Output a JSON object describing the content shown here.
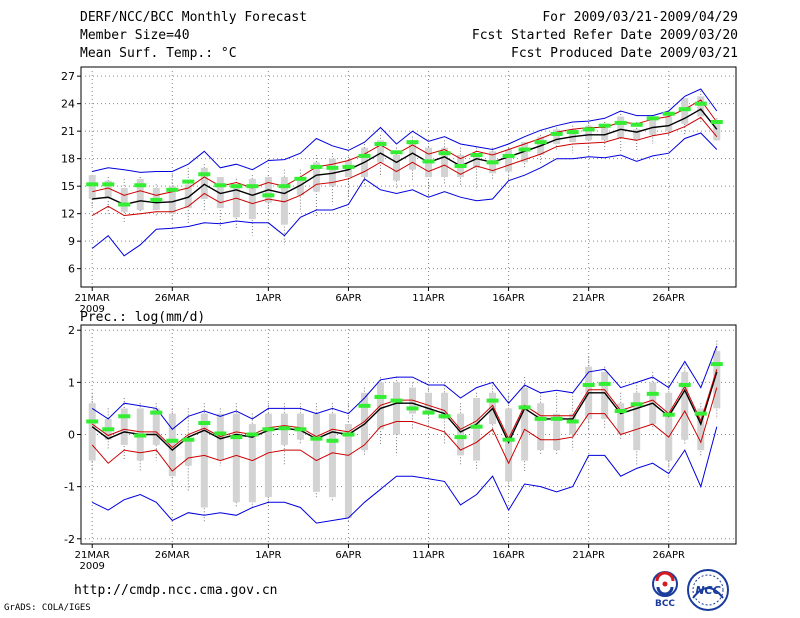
{
  "header": {
    "title": "DERF/NCC/BCC Monthly Forecast",
    "member_size": "Member Size=40",
    "variable": "Mean Surf. Temp.: °C",
    "period": "For 2009/03/21-2009/04/29",
    "fcst_started": "Fcst Started Refer Date 2009/03/20",
    "fcst_produced": "Fcst Produced Date 2009/03/21"
  },
  "footer": {
    "url": "http://cmdp.ncc.cma.gov.cn",
    "credit": "GrADS: COLA/IGES",
    "logo_bcc": "BCC",
    "logo_ncc": "NCC"
  },
  "colors": {
    "mean_line": "#000000",
    "inner_band": "#cc0000",
    "outer_band": "#0000dd",
    "box": "#d3d3d3",
    "observation_marker": "#33ee33",
    "whisker": "#777777"
  },
  "chart_data": [
    {
      "type": "line",
      "title": "Mean Surf. Temp.: °C",
      "ylim": [
        4,
        28
      ],
      "yticks": [
        6,
        9,
        12,
        15,
        18,
        21,
        24,
        27
      ],
      "xticks": [
        {
          "day": 1,
          "label": "21MAR",
          "sub": "2009"
        },
        {
          "day": 6,
          "label": "26MAR"
        },
        {
          "day": 12,
          "label": "1APR"
        },
        {
          "day": 17,
          "label": "6APR"
        },
        {
          "day": 22,
          "label": "11APR"
        },
        {
          "day": 27,
          "label": "16APR"
        },
        {
          "day": 32,
          "label": "21APR"
        },
        {
          "day": 37,
          "label": "26APR"
        }
      ],
      "x": [
        1,
        2,
        3,
        4,
        5,
        6,
        7,
        8,
        9,
        10,
        11,
        12,
        13,
        14,
        15,
        16,
        17,
        18,
        19,
        20,
        21,
        22,
        23,
        24,
        25,
        26,
        27,
        28,
        29,
        30,
        31,
        32,
        33,
        34,
        35,
        36,
        37,
        38,
        39,
        40
      ],
      "series": [
        {
          "name": "ensemble_mean",
          "values": [
            13.6,
            13.8,
            13.0,
            13.4,
            13.2,
            13.3,
            13.8,
            15.2,
            14.2,
            14.6,
            14.0,
            14.6,
            14.2,
            15.1,
            16.2,
            16.4,
            16.8,
            17.6,
            18.6,
            17.6,
            18.6,
            17.6,
            18.2,
            17.2,
            18.0,
            17.6,
            18.2,
            18.8,
            19.4,
            20.1,
            20.4,
            20.6,
            20.6,
            21.2,
            20.9,
            21.4,
            21.6,
            22.4,
            23.4,
            21.2
          ]
        },
        {
          "name": "upper_inner",
          "values": [
            14.4,
            14.8,
            14.0,
            14.5,
            14.0,
            14.4,
            14.8,
            16.0,
            15.0,
            15.4,
            14.8,
            15.4,
            15.0,
            16.0,
            17.1,
            17.4,
            17.8,
            18.5,
            19.5,
            18.5,
            19.5,
            18.5,
            19.0,
            18.0,
            18.8,
            18.4,
            19.0,
            19.6,
            20.2,
            20.9,
            21.2,
            21.4,
            21.4,
            22.0,
            21.8,
            22.3,
            22.6,
            23.4,
            24.4,
            22.0
          ]
        },
        {
          "name": "lower_inner",
          "values": [
            11.8,
            12.8,
            11.8,
            12.0,
            12.2,
            12.2,
            12.8,
            14.2,
            13.2,
            13.7,
            13.1,
            13.6,
            13.3,
            14.0,
            15.2,
            15.4,
            15.8,
            16.6,
            17.6,
            16.6,
            17.6,
            16.6,
            17.3,
            16.3,
            17.2,
            16.7,
            17.3,
            17.9,
            18.5,
            19.3,
            19.6,
            19.7,
            19.8,
            20.3,
            20.0,
            20.5,
            20.8,
            21.5,
            22.5,
            20.4
          ]
        },
        {
          "name": "upper_outer",
          "values": [
            16.6,
            17.0,
            16.8,
            16.5,
            16.6,
            16.6,
            17.4,
            18.8,
            17.0,
            17.4,
            16.8,
            17.8,
            17.9,
            18.6,
            20.2,
            19.4,
            18.9,
            19.8,
            21.4,
            19.6,
            21.0,
            19.9,
            20.4,
            19.6,
            19.3,
            19.0,
            19.6,
            20.4,
            21.1,
            21.6,
            22.0,
            22.1,
            22.4,
            23.2,
            22.7,
            22.7,
            23.2,
            24.8,
            25.6,
            23.2
          ]
        },
        {
          "name": "lower_outer",
          "values": [
            8.2,
            9.6,
            7.4,
            8.6,
            10.3,
            10.4,
            10.6,
            11.0,
            10.9,
            11.2,
            11.0,
            11.0,
            9.6,
            11.6,
            12.4,
            12.4,
            13.0,
            15.8,
            14.6,
            14.2,
            14.6,
            13.8,
            14.4,
            13.8,
            13.4,
            13.6,
            15.6,
            16.2,
            17.0,
            18.0,
            18.0,
            18.2,
            18.1,
            18.4,
            17.7,
            18.3,
            18.6,
            20.2,
            20.8,
            19.0
          ]
        },
        {
          "name": "observation",
          "values": [
            15.2,
            15.2,
            13.0,
            15.1,
            13.5,
            14.6,
            15.5,
            16.3,
            15.1,
            15.0,
            15.0,
            14.0,
            15.0,
            15.8,
            17.1,
            17.0,
            17.1,
            18.3,
            19.6,
            18.7,
            19.8,
            17.7,
            18.6,
            17.2,
            18.4,
            17.6,
            18.3,
            19.0,
            19.8,
            20.7,
            20.9,
            21.2,
            21.6,
            21.9,
            21.7,
            22.4,
            22.9,
            23.4,
            24.0,
            22.0
          ]
        }
      ],
      "box_low": [
        13.6,
        13.6,
        12.2,
        12.4,
        12.4,
        12.0,
        12.6,
        13.6,
        12.6,
        11.6,
        11.4,
        13.2,
        10.8,
        14.0,
        14.4,
        15.0,
        16.0,
        16.0,
        17.6,
        15.6,
        16.8,
        16.0,
        16.0,
        16.0,
        17.0,
        16.4,
        16.6,
        17.6,
        18.4,
        19.6,
        19.8,
        20.0,
        20.0,
        20.2,
        20.0,
        20.6,
        21.0,
        21.8,
        22.6,
        20.0
      ],
      "box_high": [
        16.2,
        15.6,
        14.8,
        15.8,
        14.8,
        15.0,
        15.2,
        17.0,
        16.0,
        15.2,
        15.8,
        16.0,
        16.0,
        16.0,
        17.6,
        18.0,
        17.8,
        19.2,
        20.0,
        18.4,
        19.6,
        19.2,
        19.2,
        18.4,
        18.4,
        18.8,
        19.0,
        19.8,
        20.4,
        21.2,
        21.2,
        21.6,
        21.8,
        22.6,
        21.2,
        22.4,
        22.6,
        24.6,
        24.8,
        22.0
      ],
      "wh_low": [
        12.8,
        12.0,
        11.0,
        12.0,
        11.6,
        11.2,
        10.8,
        12.2,
        10.4,
        10.2,
        9.6,
        12.0,
        8.6,
        12.2,
        11.6,
        13.0,
        13.8,
        15.0,
        16.0,
        14.8,
        15.6,
        14.0,
        15.2,
        15.0,
        14.6,
        15.8,
        15.8,
        17.0,
        17.4,
        19.0,
        18.6,
        18.8,
        19.0,
        18.8,
        18.8,
        19.6,
        20.4,
        20.6,
        22.0,
        20.0
      ],
      "wh_high": [
        16.2,
        16.0,
        15.8,
        16.0,
        15.2,
        16.4,
        17.0,
        17.4,
        16.0,
        15.8,
        16.2,
        16.2,
        16.8,
        16.8,
        18.4,
        18.6,
        18.2,
        19.6,
        20.6,
        19.2,
        20.4,
        19.4,
        20.0,
        19.2,
        19.2,
        19.2,
        19.2,
        19.8,
        20.6,
        21.4,
        21.6,
        22.0,
        22.0,
        23.2,
        22.0,
        22.6,
        23.0,
        24.4,
        25.4,
        22.4
      ]
    },
    {
      "type": "line",
      "title": "Prec.: log(mm/d)",
      "ylim": [
        -2.1,
        2.1
      ],
      "yticks": [
        -2,
        -1,
        0,
        1,
        2
      ],
      "xticks": [
        {
          "day": 1,
          "label": "21MAR",
          "sub": "2009"
        },
        {
          "day": 6,
          "label": "26MAR"
        },
        {
          "day": 12,
          "label": "1APR"
        },
        {
          "day": 17,
          "label": "6APR"
        },
        {
          "day": 22,
          "label": "11APR"
        },
        {
          "day": 27,
          "label": "16APR"
        },
        {
          "day": 32,
          "label": "21APR"
        },
        {
          "day": 37,
          "label": "26APR"
        }
      ],
      "x": [
        1,
        2,
        3,
        4,
        5,
        6,
        7,
        8,
        9,
        10,
        11,
        12,
        13,
        14,
        15,
        16,
        17,
        18,
        19,
        20,
        21,
        22,
        23,
        24,
        25,
        26,
        27,
        28,
        29,
        30,
        31,
        32,
        33,
        34,
        35,
        36,
        37,
        38,
        39,
        40
      ],
      "series": [
        {
          "name": "ensemble_mean",
          "values": [
            0.15,
            -0.08,
            0.05,
            0.0,
            0.0,
            -0.3,
            -0.05,
            0.08,
            -0.08,
            0.0,
            -0.05,
            0.08,
            0.12,
            0.08,
            -0.08,
            0.05,
            0.0,
            0.2,
            0.5,
            0.6,
            0.6,
            0.5,
            0.4,
            0.05,
            0.2,
            0.5,
            -0.15,
            0.5,
            0.3,
            0.3,
            0.3,
            0.8,
            0.8,
            0.4,
            0.5,
            0.6,
            0.35,
            0.85,
            0.2,
            1.2
          ]
        },
        {
          "name": "upper_inner",
          "values": [
            0.2,
            -0.02,
            0.1,
            0.05,
            0.05,
            -0.25,
            0.0,
            0.12,
            -0.04,
            0.05,
            0.0,
            0.13,
            0.17,
            0.13,
            -0.04,
            0.1,
            0.05,
            0.25,
            0.56,
            0.66,
            0.66,
            0.56,
            0.46,
            0.1,
            0.26,
            0.56,
            -0.08,
            0.56,
            0.36,
            0.36,
            0.36,
            0.86,
            0.86,
            0.46,
            0.56,
            0.66,
            0.4,
            0.92,
            0.26,
            1.25
          ]
        },
        {
          "name": "lower_inner",
          "values": [
            -0.2,
            -0.55,
            -0.3,
            -0.35,
            -0.3,
            -0.7,
            -0.45,
            -0.4,
            -0.5,
            -0.4,
            -0.5,
            -0.35,
            -0.3,
            -0.3,
            -0.5,
            -0.35,
            -0.4,
            -0.2,
            0.15,
            0.25,
            0.25,
            0.15,
            0.05,
            -0.3,
            -0.15,
            0.1,
            -0.55,
            0.1,
            -0.1,
            -0.1,
            -0.05,
            0.4,
            0.4,
            0.0,
            0.1,
            0.2,
            -0.05,
            0.45,
            -0.15,
            0.9
          ]
        },
        {
          "name": "upper_outer",
          "values": [
            0.5,
            0.3,
            0.6,
            0.55,
            0.5,
            0.1,
            0.35,
            0.45,
            0.35,
            0.45,
            0.3,
            0.5,
            0.5,
            0.5,
            0.4,
            0.5,
            0.4,
            0.7,
            1.05,
            1.1,
            1.1,
            0.95,
            0.95,
            0.7,
            0.9,
            1.0,
            0.6,
            0.95,
            0.8,
            0.85,
            0.8,
            1.2,
            1.25,
            0.9,
            1.0,
            1.1,
            0.9,
            1.4,
            0.9,
            1.7
          ]
        },
        {
          "name": "lower_outer",
          "values": [
            -1.3,
            -1.45,
            -1.25,
            -1.15,
            -1.3,
            -1.65,
            -1.5,
            -1.55,
            -1.5,
            -1.55,
            -1.4,
            -1.3,
            -1.3,
            -1.4,
            -1.7,
            -1.65,
            -1.6,
            -1.3,
            -1.05,
            -0.8,
            -0.8,
            -0.85,
            -0.9,
            -1.35,
            -1.15,
            -0.8,
            -1.45,
            -0.95,
            -1.0,
            -1.1,
            -1.0,
            -0.4,
            -0.4,
            -0.8,
            -0.65,
            -0.55,
            -0.75,
            -0.3,
            -1.0,
            0.15
          ]
        },
        {
          "name": "observation",
          "values": [
            0.25,
            0.1,
            0.35,
            -0.02,
            0.42,
            -0.12,
            -0.1,
            0.22,
            0.02,
            -0.05,
            0.0,
            0.1,
            0.12,
            0.1,
            -0.08,
            -0.12,
            0.0,
            0.55,
            0.72,
            0.65,
            0.5,
            0.42,
            0.35,
            -0.05,
            0.15,
            0.65,
            -0.1,
            0.52,
            0.3,
            0.3,
            0.25,
            0.95,
            0.97,
            0.45,
            0.58,
            0.78,
            0.38,
            0.95,
            0.4,
            1.35
          ]
        }
      ],
      "box_low": [
        -0.5,
        -0.1,
        -0.2,
        -0.5,
        -0.2,
        -0.8,
        -0.6,
        -1.4,
        -0.5,
        -1.3,
        -1.3,
        -1.2,
        -0.2,
        -0.1,
        -1.1,
        -1.2,
        -1.6,
        -0.3,
        0.1,
        0.0,
        0.4,
        0.4,
        0.3,
        -0.4,
        -0.5,
        0.2,
        -0.9,
        -0.5,
        -0.3,
        -0.3,
        0.0,
        0.3,
        0.3,
        0.0,
        -0.3,
        0.2,
        -0.5,
        -0.1,
        -0.3,
        0.5
      ],
      "box_high": [
        0.6,
        0.3,
        0.5,
        0.5,
        0.5,
        0.4,
        -0.1,
        0.4,
        0.4,
        0.4,
        0.2,
        0.4,
        0.4,
        0.4,
        0.4,
        0.4,
        0.2,
        0.8,
        1.0,
        1.0,
        0.9,
        0.8,
        0.8,
        0.4,
        0.7,
        0.8,
        0.5,
        0.9,
        0.6,
        0.4,
        0.4,
        1.3,
        1.2,
        0.6,
        0.8,
        1.0,
        0.8,
        1.2,
        0.5,
        1.6
      ],
      "wh_low": [
        -0.7,
        -0.3,
        -0.5,
        -0.7,
        -0.5,
        -1.0,
        -1.1,
        -1.7,
        -0.6,
        -1.4,
        -1.4,
        -1.4,
        -0.6,
        -0.2,
        -1.2,
        -1.3,
        -1.7,
        -0.4,
        -0.2,
        -0.4,
        0.1,
        0.2,
        -0.2,
        -0.6,
        -0.7,
        0.0,
        -1.0,
        -0.7,
        -0.4,
        -0.4,
        -0.3,
        0.1,
        0.1,
        -0.1,
        -0.6,
        0.1,
        -0.8,
        -0.2,
        -0.4,
        0.3
      ],
      "wh_high": [
        0.8,
        0.5,
        0.7,
        0.6,
        0.6,
        0.5,
        0.5,
        0.6,
        0.5,
        0.6,
        0.4,
        0.6,
        0.6,
        0.6,
        0.6,
        0.6,
        0.6,
        0.9,
        1.1,
        1.1,
        1.0,
        0.9,
        1.0,
        0.6,
        0.8,
        1.0,
        0.8,
        1.1,
        0.8,
        0.8,
        0.8,
        1.5,
        1.3,
        0.8,
        1.0,
        1.2,
        1.0,
        1.4,
        0.6,
        1.8
      ]
    }
  ]
}
